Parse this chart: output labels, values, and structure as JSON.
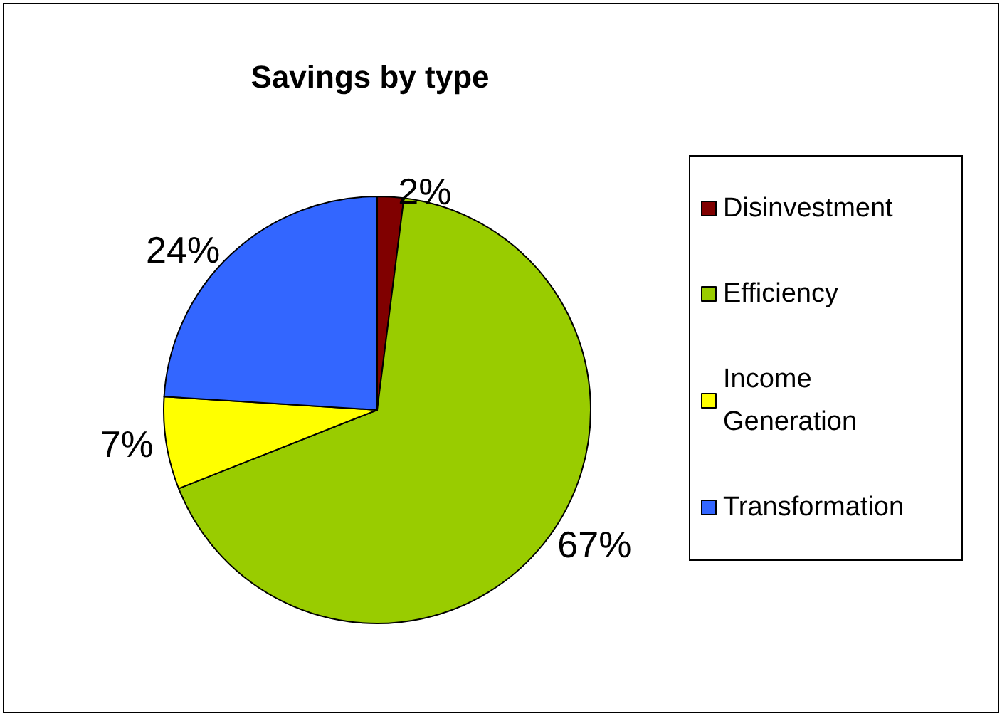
{
  "chart_data": {
    "type": "pie",
    "title": "Savings by type",
    "categories": [
      "Disinvestment",
      "Efficiency",
      "Income Generation",
      "Transformation"
    ],
    "values": [
      2,
      67,
      7,
      24
    ],
    "colors": [
      "#800000",
      "#99cc00",
      "#ffff00",
      "#3366ff"
    ],
    "value_labels": [
      "2%",
      "67%",
      "7%",
      "24%"
    ],
    "legend": "right"
  }
}
